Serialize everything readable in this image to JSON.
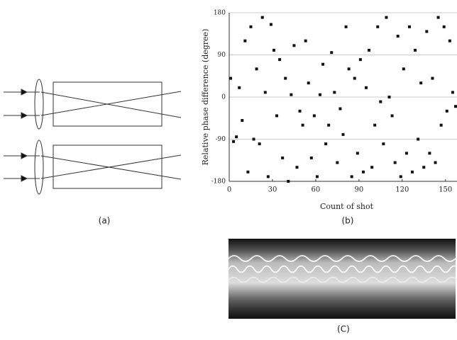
{
  "figure": {
    "label_a": "(a)",
    "label_c": "(C)"
  },
  "chart_data": {
    "type": "scatter",
    "label": "(b)",
    "xlabel": "Count of shot",
    "ylabel": "Relative phase difference (degree)",
    "x": [
      1,
      3,
      5,
      7,
      9,
      11,
      13,
      15,
      17,
      19,
      21,
      23,
      25,
      27,
      29,
      31,
      33,
      35,
      37,
      39,
      41,
      43,
      45,
      47,
      49,
      51,
      53,
      55,
      57,
      59,
      61,
      63,
      65,
      67,
      69,
      71,
      73,
      75,
      77,
      79,
      81,
      83,
      85,
      87,
      89,
      91,
      93,
      95,
      97,
      99,
      101,
      103,
      105,
      107,
      109,
      111,
      113,
      115,
      117,
      119,
      121,
      123,
      125,
      127,
      129,
      131,
      133,
      135,
      137,
      139,
      141,
      143,
      145,
      147,
      149,
      151,
      153,
      155,
      157
    ],
    "values": [
      40,
      -95,
      -85,
      20,
      -50,
      120,
      -160,
      150,
      -90,
      60,
      -100,
      170,
      10,
      -170,
      155,
      100,
      -40,
      80,
      -130,
      40,
      -180,
      5,
      110,
      -150,
      -30,
      -60,
      120,
      30,
      -130,
      -40,
      -170,
      5,
      70,
      -100,
      -60,
      95,
      10,
      -140,
      -25,
      -80,
      150,
      60,
      -170,
      40,
      -120,
      80,
      -160,
      20,
      100,
      -150,
      -60,
      150,
      -10,
      -100,
      170,
      0,
      -40,
      -140,
      130,
      -170,
      60,
      -120,
      150,
      -160,
      100,
      -90,
      30,
      -150,
      140,
      -120,
      40,
      -140,
      170,
      -60,
      150,
      -30,
      120,
      10,
      -20
    ],
    "color": "#111111",
    "xlim": [
      0,
      158
    ],
    "ylim": [
      -180,
      180
    ],
    "xticks": [
      0,
      30,
      60,
      90,
      120,
      150
    ],
    "yticks": [
      -180,
      -90,
      0,
      90,
      180
    ],
    "grid": true
  }
}
